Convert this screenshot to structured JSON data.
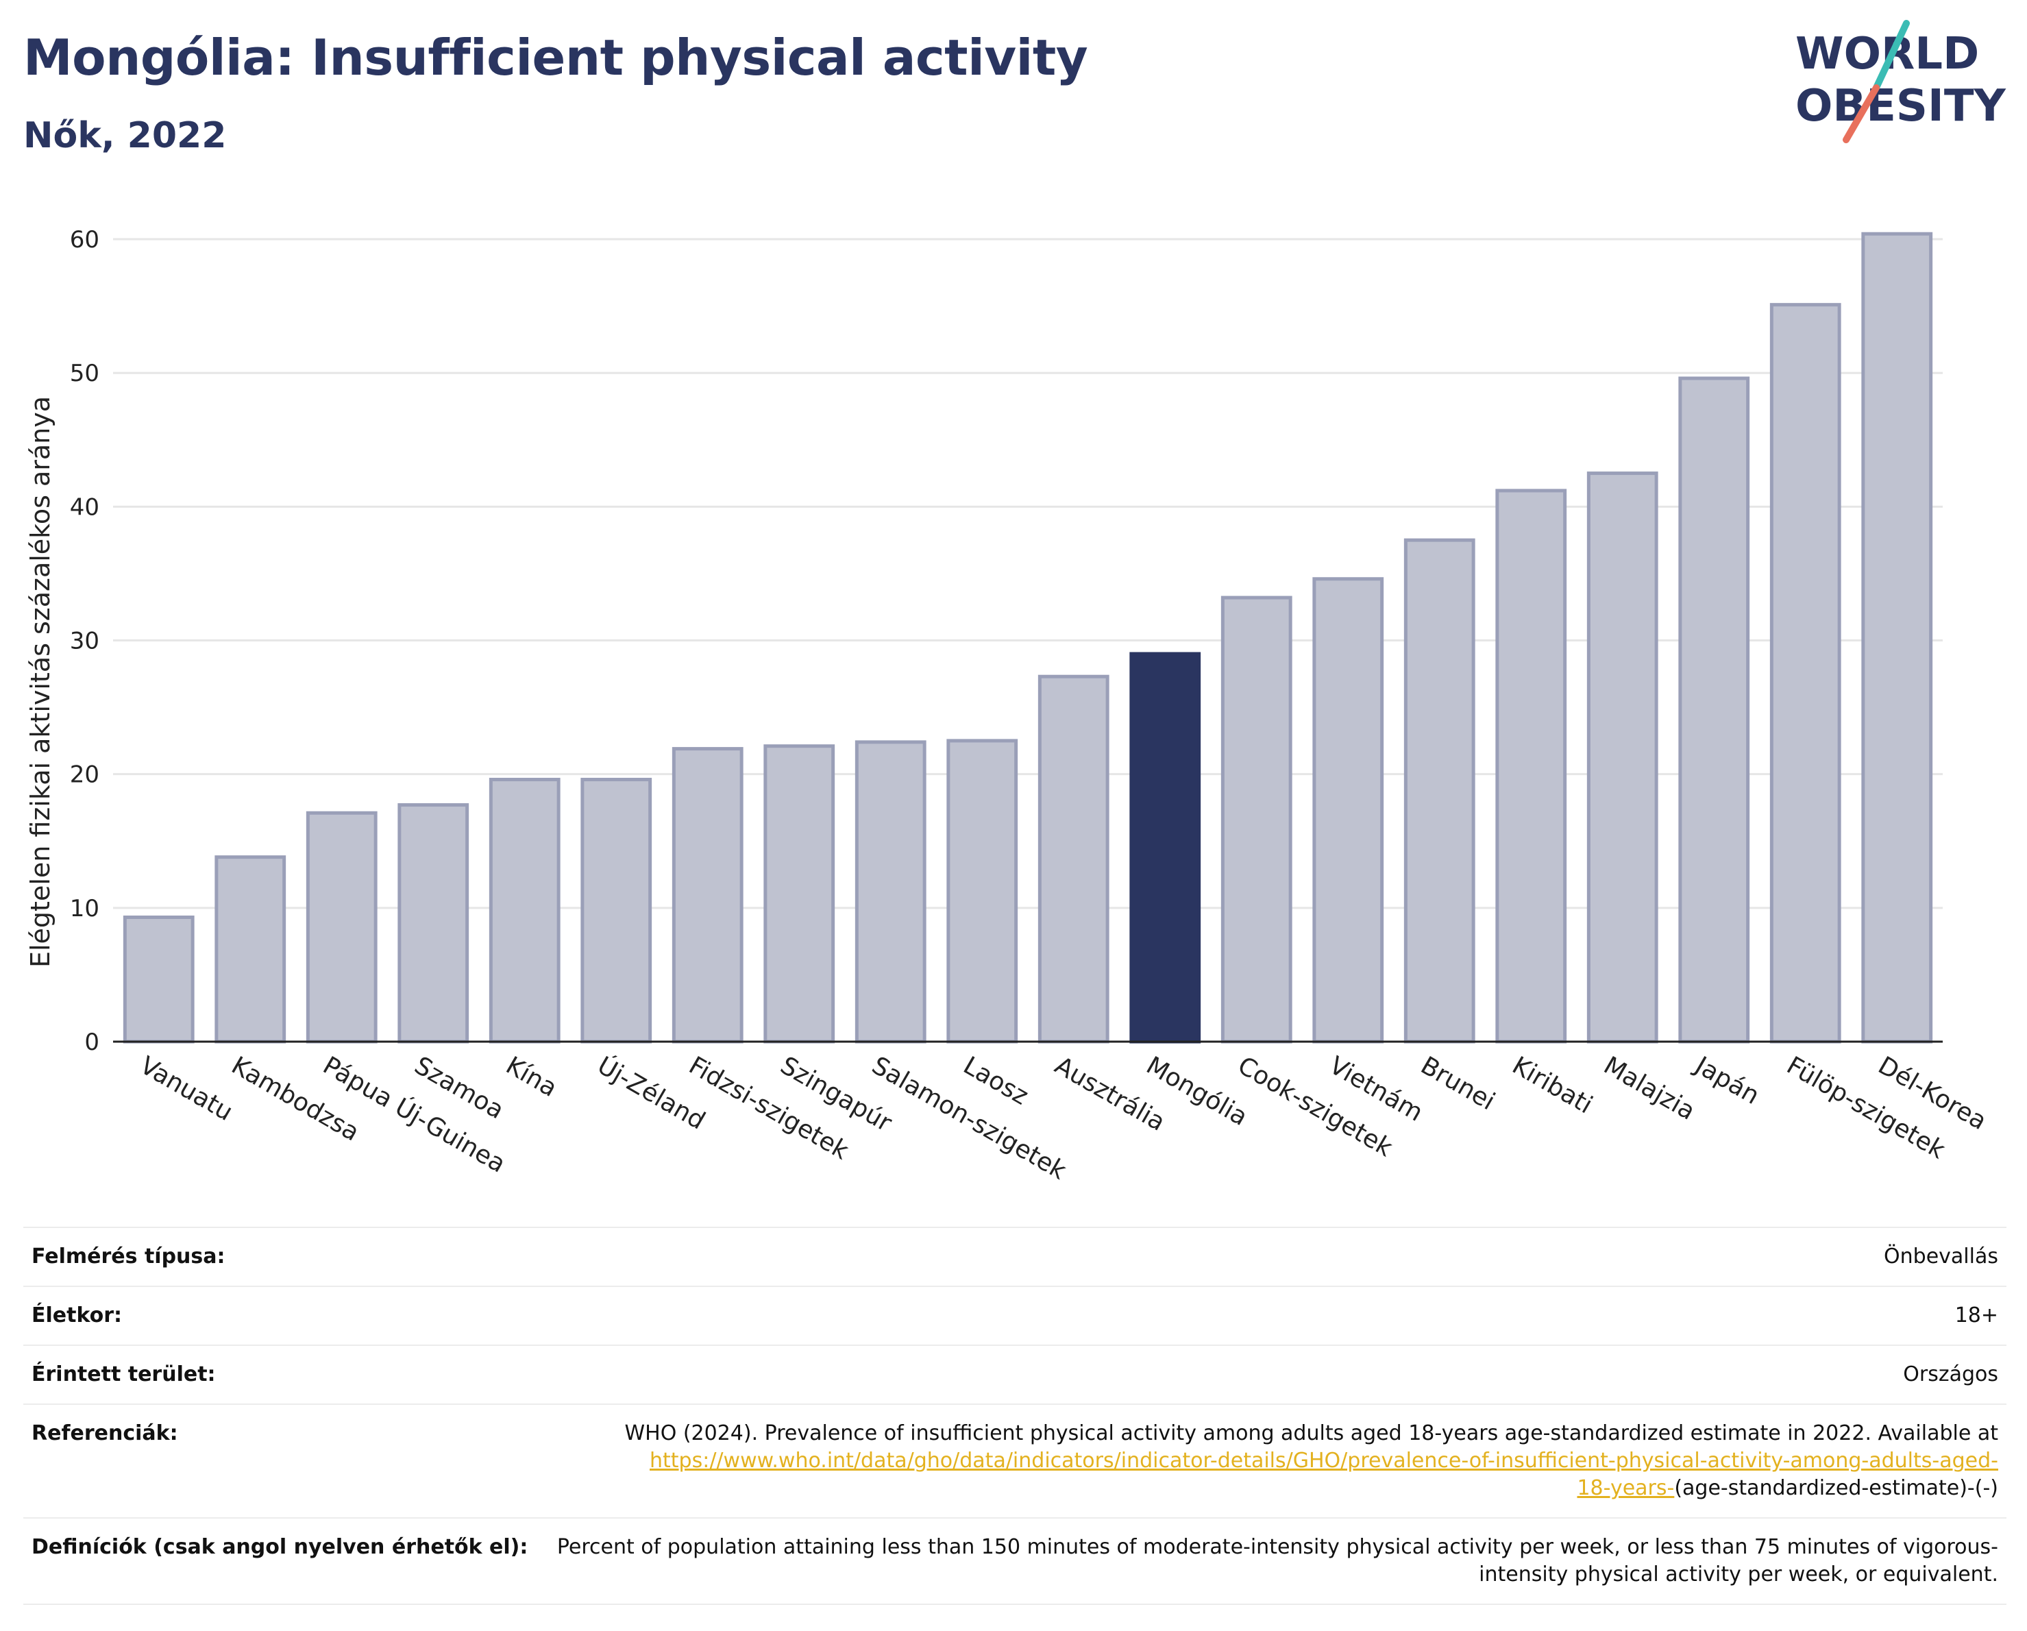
{
  "header": {
    "title": "Mongólia: Insufficient physical activity",
    "subtitle": "Nők, 2022"
  },
  "logo": {
    "line1": "WORLD",
    "line2": "OBESITY",
    "colors": {
      "text": "#2a3560",
      "slash_teal": "#3bbcb4",
      "slash_coral": "#e8705c"
    }
  },
  "chart_data": {
    "type": "bar",
    "categories": [
      "Vanuatu",
      "Kambodzsa",
      "Pápua Új-Guinea",
      "Szamoa",
      "Kína",
      "Új-Zéland",
      "Fidzsi-szigetek",
      "Szingapúr",
      "Salamon-szigetek",
      "Laosz",
      "Ausztrália",
      "Mongólia",
      "Cook-szigetek",
      "Vietnám",
      "Brunei",
      "Kiribati",
      "Malajzia",
      "Japán",
      "Fülöp-szigetek",
      "Dél-Korea"
    ],
    "values": [
      9.3,
      13.8,
      17.1,
      17.7,
      19.6,
      19.6,
      21.9,
      22.1,
      22.4,
      22.5,
      27.3,
      29.0,
      33.2,
      34.6,
      37.5,
      41.2,
      42.5,
      49.6,
      55.1,
      60.4
    ],
    "highlight": "Mongólia",
    "ylabel": "Elégtelen fizikai aktivitás százalékos aránya",
    "xlabel": "",
    "ylim": [
      0,
      62
    ],
    "yticks": [
      0,
      10,
      20,
      30,
      40,
      50,
      60
    ],
    "grid": true,
    "colors": {
      "bar": "#bfc2d0",
      "bar_edge": "#9a9fb8",
      "highlight": "#2a3560",
      "grid": "#e6e6e6",
      "axis": "#222222"
    }
  },
  "info": {
    "survey_type": {
      "label": "Felmérés típusa:",
      "value": "Önbevallás"
    },
    "age": {
      "label": "Életkor:",
      "value": "18+"
    },
    "area": {
      "label": "Érintett terület:",
      "value": "Országos"
    },
    "references": {
      "label": "Referenciák:",
      "text": "WHO (2024). Prevalence of insufficient physical activity among adults aged 18-years age-standardized estimate in 2022. Available at",
      "link_line1": "https://www.who.int/data/gho/data/indicators/indicator-details/GHO/prevalence-of-insufficient-physical-activity-among-adults-aged-",
      "link_line2": "18-years-",
      "suffix": "(age-standardized-estimate)-(-)"
    },
    "definitions": {
      "label": "Definíciók (csak angol nyelven érhetők el):",
      "value": "Percent of population attaining less than 150 minutes of moderate-intensity physical activity per week, or less than 75 minutes of vigorous-intensity physical activity per week, or equivalent."
    }
  }
}
